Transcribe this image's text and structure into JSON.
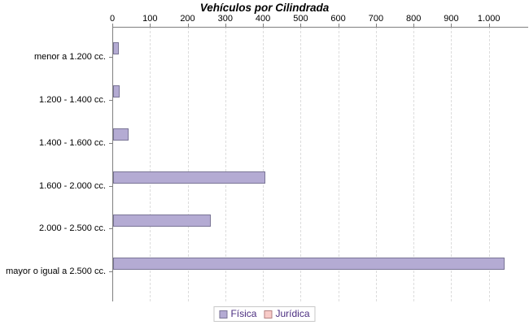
{
  "chart_data": {
    "type": "bar",
    "orientation": "horizontal",
    "title": "Vehículos por Cilindrada",
    "categories": [
      "menor a 1.200 cc.",
      "1.200 - 1.400 cc.",
      "1.400 - 1.600 cc.",
      "1.600 - 2.000 cc.",
      "2.000 - 2.500 cc.",
      "mayor o igual a 2.500 cc."
    ],
    "series": [
      {
        "name": "Física",
        "color": "#b4abd3",
        "border_color": "#7a7596",
        "values": [
          15,
          17,
          42,
          405,
          260,
          1040
        ]
      },
      {
        "name": "Jurídica",
        "color": "#f8cbc8",
        "border_color": "#b58282",
        "values": [
          0,
          0,
          0,
          0,
          0,
          0
        ]
      }
    ],
    "x_axis": {
      "min": 0,
      "max": 1100,
      "tick_values": [
        0,
        100,
        200,
        300,
        400,
        500,
        600,
        700,
        800,
        900,
        1000
      ],
      "tick_labels": [
        "0",
        "100",
        "200",
        "300",
        "400",
        "500",
        "600",
        "700",
        "800",
        "900",
        "1.000"
      ]
    },
    "gridlines": {
      "show": true,
      "style": "dashed",
      "color": "#dcdcdc"
    },
    "legend": {
      "position": "bottom",
      "text_color": "#4b2e80"
    },
    "colors": {
      "axis": "#808080",
      "background": "#ffffff",
      "text": "#000000"
    }
  }
}
